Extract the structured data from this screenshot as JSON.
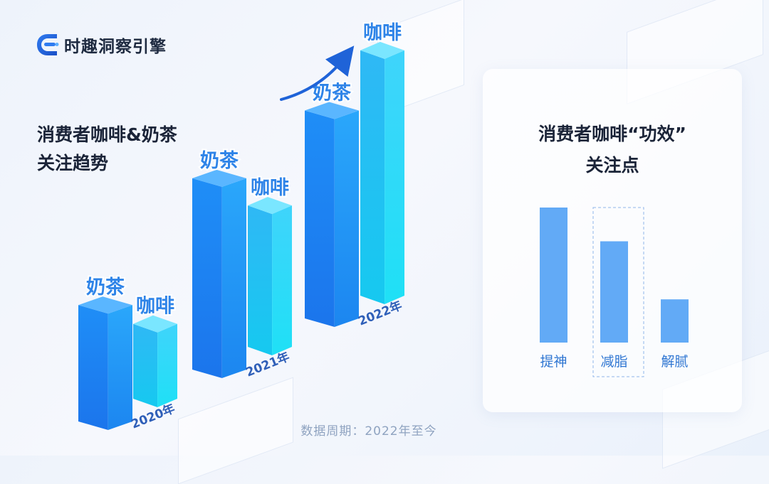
{
  "brand": {
    "name": "时趣洞察引擎",
    "logo_icon": "brand-logo-icon"
  },
  "left_chart": {
    "title_line1": "消费者咖啡&奶茶",
    "title_line2": "关注趋势"
  },
  "right_panel": {
    "title_line1": "消费者咖啡“功效”",
    "title_line2": "关注点"
  },
  "footnote": "数据周期：2022年至今",
  "colors": {
    "milk_tea_front": "#1a8ff5",
    "coffee_front": "#24c6f2",
    "effect_bar": "#62aaf6",
    "label_text": "#2f84e8"
  },
  "chart_data": [
    {
      "type": "bar",
      "style": "3d-isometric-grouped",
      "categories": [
        "2020年",
        "2021年",
        "2022年"
      ],
      "series": [
        {
          "name": "奶茶",
          "values": [
            1.4,
            2.3,
            2.5
          ]
        },
        {
          "name": "咖啡",
          "values": [
            0.9,
            1.7,
            2.95
          ]
        }
      ],
      "annotation": "upward arrow pointing to 2022 咖啡",
      "axes": "hidden"
    },
    {
      "type": "bar",
      "categories": [
        "提神",
        "减脂",
        "解腻"
      ],
      "values": [
        100,
        75,
        32
      ],
      "highlighted_category": "减脂",
      "axes": "hidden"
    }
  ]
}
